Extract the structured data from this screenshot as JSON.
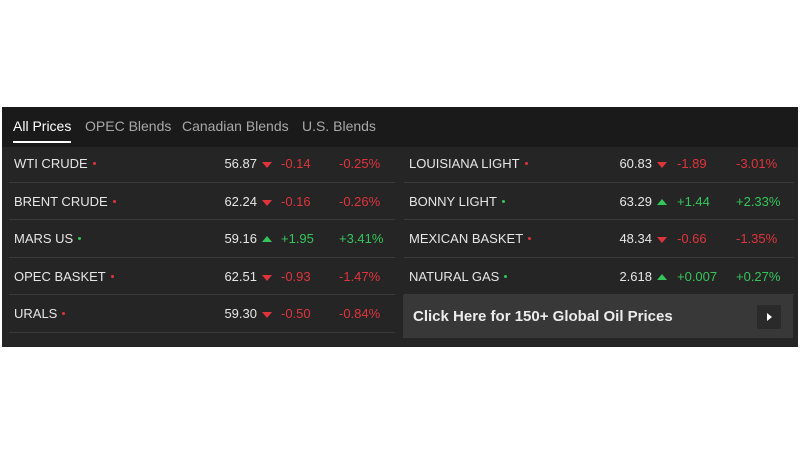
{
  "tabs": [
    {
      "label": "All Prices"
    },
    {
      "label": "OPEC Blends"
    },
    {
      "label": "Canadian Blends"
    },
    {
      "label": "U.S. Blends"
    }
  ],
  "left_rows": [
    {
      "name": "WTI CRUDE",
      "price": "56.87",
      "change": "-0.14",
      "percent": "-0.25%",
      "direction": "down"
    },
    {
      "name": "BRENT CRUDE",
      "price": "62.24",
      "change": "-0.16",
      "percent": "-0.26%",
      "direction": "down"
    },
    {
      "name": "MARS US",
      "price": "59.16",
      "change": "+1.95",
      "percent": "+3.41%",
      "direction": "up"
    },
    {
      "name": "OPEC BASKET",
      "price": "62.51",
      "change": "-0.93",
      "percent": "-1.47%",
      "direction": "down"
    },
    {
      "name": "URALS",
      "price": "59.30",
      "change": "-0.50",
      "percent": "-0.84%",
      "direction": "down"
    }
  ],
  "right_rows": [
    {
      "name": "LOUISIANA LIGHT",
      "price": "60.83",
      "change": "-1.89",
      "percent": "-3.01%",
      "direction": "down"
    },
    {
      "name": "BONNY LIGHT",
      "price": "63.29",
      "change": "+1.44",
      "percent": "+2.33%",
      "direction": "up"
    },
    {
      "name": "MEXICAN BASKET",
      "price": "48.34",
      "change": "-0.66",
      "percent": "-1.35%",
      "direction": "down"
    },
    {
      "name": "NATURAL GAS",
      "price": "2.618",
      "change": "+0.007",
      "percent": "+0.27%",
      "direction": "up"
    }
  ],
  "cta": {
    "label": "Click Here for 150+ Global Oil Prices",
    "icon": "play-arrow-icon"
  },
  "colors": {
    "up": "#35c55a",
    "down": "#e0343c",
    "background": "#252525",
    "tab_bar": "#1a1a1a"
  }
}
